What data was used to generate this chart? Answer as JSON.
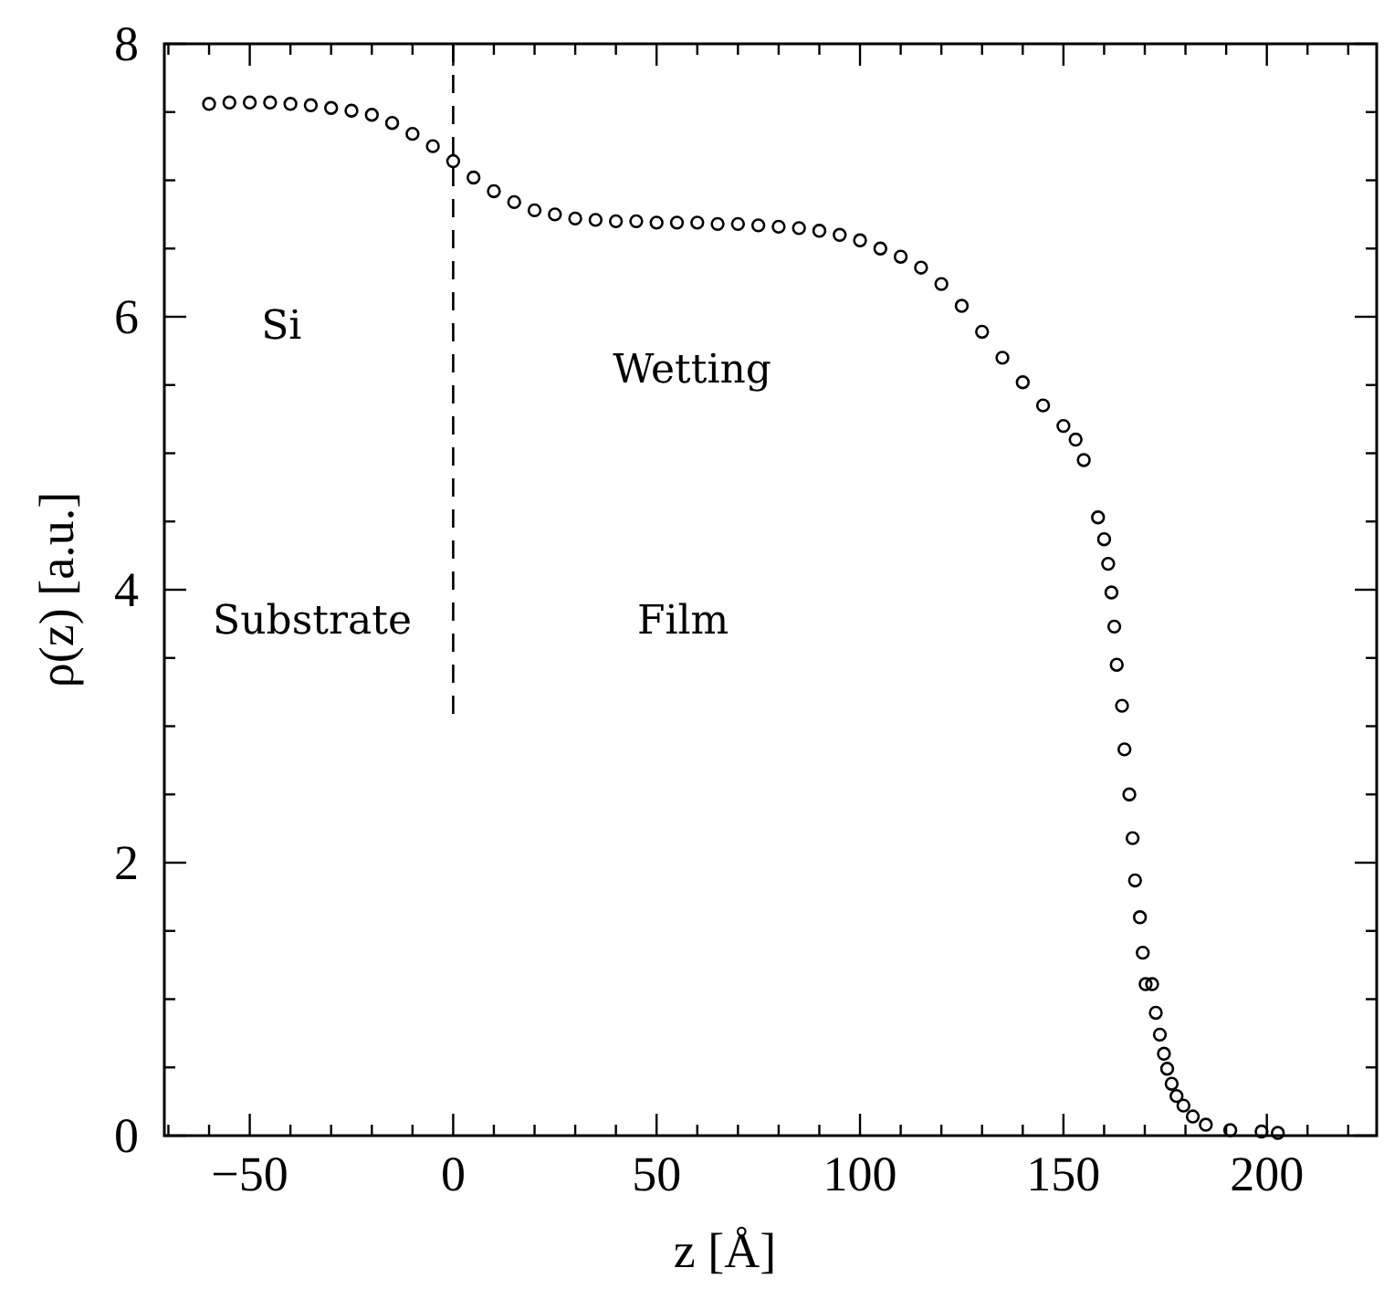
{
  "chart_data": {
    "type": "scatter",
    "xlabel": "z [Å]",
    "ylabel": "ρ(z) [a.u.]",
    "xlim": [
      -71,
      227
    ],
    "ylim": [
      0,
      8
    ],
    "xticks": [
      -50,
      0,
      50,
      100,
      150,
      200,
      {
        "value": -70,
        "label": null
      },
      {
        "value": -60,
        "label": null
      },
      {
        "value": -40,
        "label": null
      },
      {
        "value": -30,
        "label": null
      },
      {
        "value": -20,
        "label": null
      },
      {
        "value": -10,
        "label": null
      },
      {
        "value": 10,
        "label": null
      },
      {
        "value": 20,
        "label": null
      },
      {
        "value": 30,
        "label": null
      },
      {
        "value": 40,
        "label": null
      },
      {
        "value": 60,
        "label": null
      },
      {
        "value": 70,
        "label": null
      },
      {
        "value": 80,
        "label": null
      },
      {
        "value": 90,
        "label": null
      },
      {
        "value": 110,
        "label": null
      },
      {
        "value": 120,
        "label": null
      },
      {
        "value": 130,
        "label": null
      },
      {
        "value": 140,
        "label": null
      },
      {
        "value": 160,
        "label": null
      },
      {
        "value": 170,
        "label": null
      },
      {
        "value": 180,
        "label": null
      },
      {
        "value": 190,
        "label": null
      },
      {
        "value": 210,
        "label": null
      },
      {
        "value": 220,
        "label": null
      }
    ],
    "yticks": [
      0,
      2,
      4,
      6,
      8,
      {
        "value": 0.5,
        "label": null
      },
      {
        "value": 1,
        "label": null
      },
      {
        "value": 1.5,
        "label": null
      },
      {
        "value": 2.5,
        "label": null
      },
      {
        "value": 3,
        "label": null
      },
      {
        "value": 3.5,
        "label": null
      },
      {
        "value": 4.5,
        "label": null
      },
      {
        "value": 5,
        "label": null
      },
      {
        "value": 5.5,
        "label": null
      },
      {
        "value": 6.5,
        "label": null
      },
      {
        "value": 7,
        "label": null
      },
      {
        "value": 7.5,
        "label": null
      }
    ],
    "marker": "circle",
    "grid": false,
    "ref_lines": [
      {
        "axis": "x",
        "value": 0,
        "line_style": "dashed",
        "color": "#000000"
      }
    ],
    "annotations": [
      "Si",
      "Substrate",
      "Wetting",
      "Film"
    ],
    "series": [
      {
        "color": "#000000",
        "x": [
          -60,
          -55,
          -50,
          -45,
          -40,
          -35,
          -30,
          -25,
          -20,
          -15,
          -10,
          -5,
          0,
          5,
          10,
          15,
          20,
          25,
          30,
          35,
          40,
          45,
          50,
          55,
          60,
          65,
          70,
          75,
          80,
          85,
          90,
          95,
          100,
          105,
          110,
          115,
          120,
          125,
          130,
          135,
          140,
          145,
          150,
          153,
          155,
          158.5,
          160,
          161,
          161.8,
          162.5,
          163.1,
          164.4,
          165,
          166.2,
          167,
          167.6,
          168.8,
          169.5,
          170.2,
          171.8,
          172.7,
          173.7,
          174.7,
          175.5,
          176.6,
          177.8,
          179.5,
          181.8,
          185,
          191,
          198.7,
          202.7
        ],
        "values": [
          7.56,
          7.57,
          7.57,
          7.57,
          7.56,
          7.55,
          7.53,
          7.51,
          7.48,
          7.42,
          7.34,
          7.25,
          7.14,
          7.02,
          6.92,
          6.84,
          6.78,
          6.75,
          6.72,
          6.71,
          6.7,
          6.7,
          6.69,
          6.69,
          6.69,
          6.68,
          6.68,
          6.67,
          6.66,
          6.65,
          6.63,
          6.6,
          6.56,
          6.5,
          6.44,
          6.36,
          6.24,
          6.08,
          5.89,
          5.7,
          5.52,
          5.35,
          5.2,
          5.1,
          4.95,
          4.53,
          4.37,
          4.19,
          3.98,
          3.73,
          3.45,
          3.15,
          2.83,
          2.5,
          2.18,
          1.87,
          1.6,
          1.34,
          1.11,
          1.11,
          0.9,
          0.74,
          0.6,
          0.49,
          0.38,
          0.29,
          0.22,
          0.14,
          0.08,
          0.04,
          0.03,
          0.02
        ]
      }
    ]
  }
}
